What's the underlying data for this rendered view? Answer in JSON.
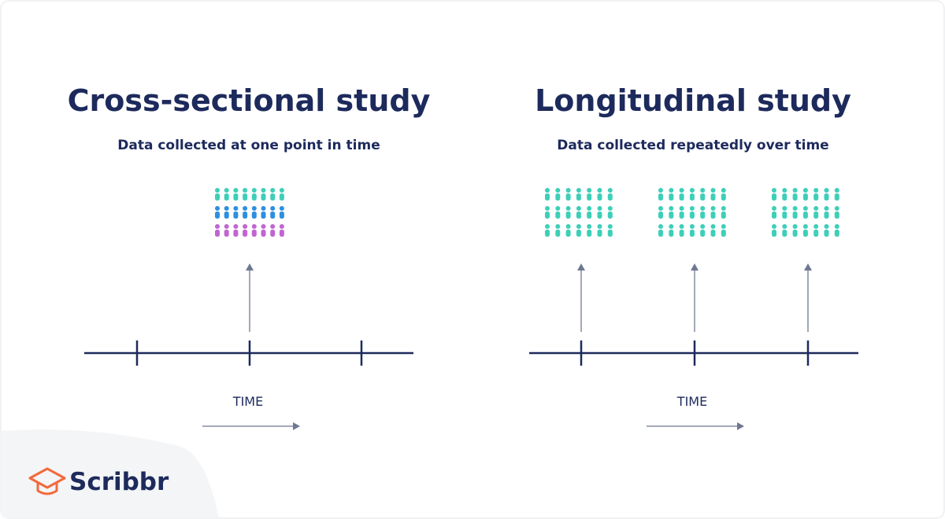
{
  "panels": [
    {
      "title": "Cross-sectional study",
      "subtitle": "Data collected at one point in time",
      "axis_label": "TIME"
    },
    {
      "title": "Longitudinal study",
      "subtitle": "Data collected repeatedly over time",
      "axis_label": "TIME"
    }
  ],
  "brand": "Scribbr"
}
